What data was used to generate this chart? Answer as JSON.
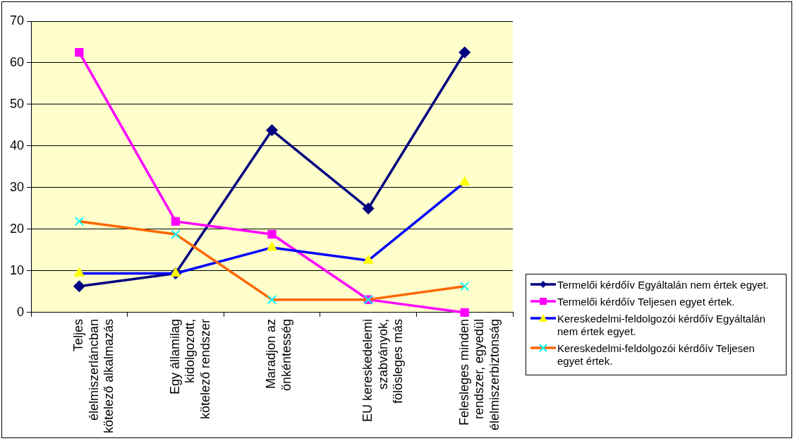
{
  "chart_data": {
    "type": "line",
    "categories": [
      "Teljes élelmiszerláncban kötelező alkalmazás",
      "Egy államilag kidolgozott, kötelező rendszer",
      "Maradjon az önkéntesség",
      "EU kereskedelemi szabványok, fölösleges más",
      "Felesleges minden rendszer, egyedül élelmiszerbiztonság"
    ],
    "series": [
      {
        "name": "Termelői kérdőív Egyáltalán nem értek egyet.",
        "color": "#000080",
        "marker": "diamond",
        "colors": [
          "#000080",
          "#000080",
          "#000080",
          "#000080",
          "#000080"
        ],
        "values": [
          6.3,
          9.4,
          43.8,
          25,
          62.5
        ]
      },
      {
        "name": "Termelői kérdőív Teljesen egyet értek.",
        "color": "#ff00ff",
        "marker": "square",
        "colors": [
          "#ff00ff",
          "#ff00ff",
          "#ff00ff",
          "#ff00ff",
          "#ff00ff"
        ],
        "values": [
          62.5,
          21.9,
          18.8,
          3.1,
          0
        ]
      },
      {
        "name": "Kereskedelmi-feldolgozói kérdőív Egyáltalán nem értek egyet.",
        "color": "#0000ff",
        "marker": "triangle",
        "colors": [
          "#ffff00",
          "#ffff00",
          "#ffff00",
          "#ffff00",
          "#ffff00"
        ],
        "values": [
          9.4,
          9.4,
          15.6,
          12.5,
          31.3
        ]
      },
      {
        "name": "Kereskedelmi-feldolgozói kérdőív Teljesen egyet értek.",
        "color": "#ff6600",
        "marker": "cross",
        "colors": [
          "#00ffff",
          "#00ffff",
          "#00ffff",
          "#00ffff",
          "#00ffff"
        ],
        "values": [
          21.9,
          18.8,
          3.1,
          3.1,
          6.3
        ]
      }
    ],
    "ylim": [
      0,
      70
    ],
    "yticks": [
      0,
      10,
      20,
      30,
      40,
      50,
      60,
      70
    ],
    "grid": "y",
    "legend": "bottom right"
  }
}
